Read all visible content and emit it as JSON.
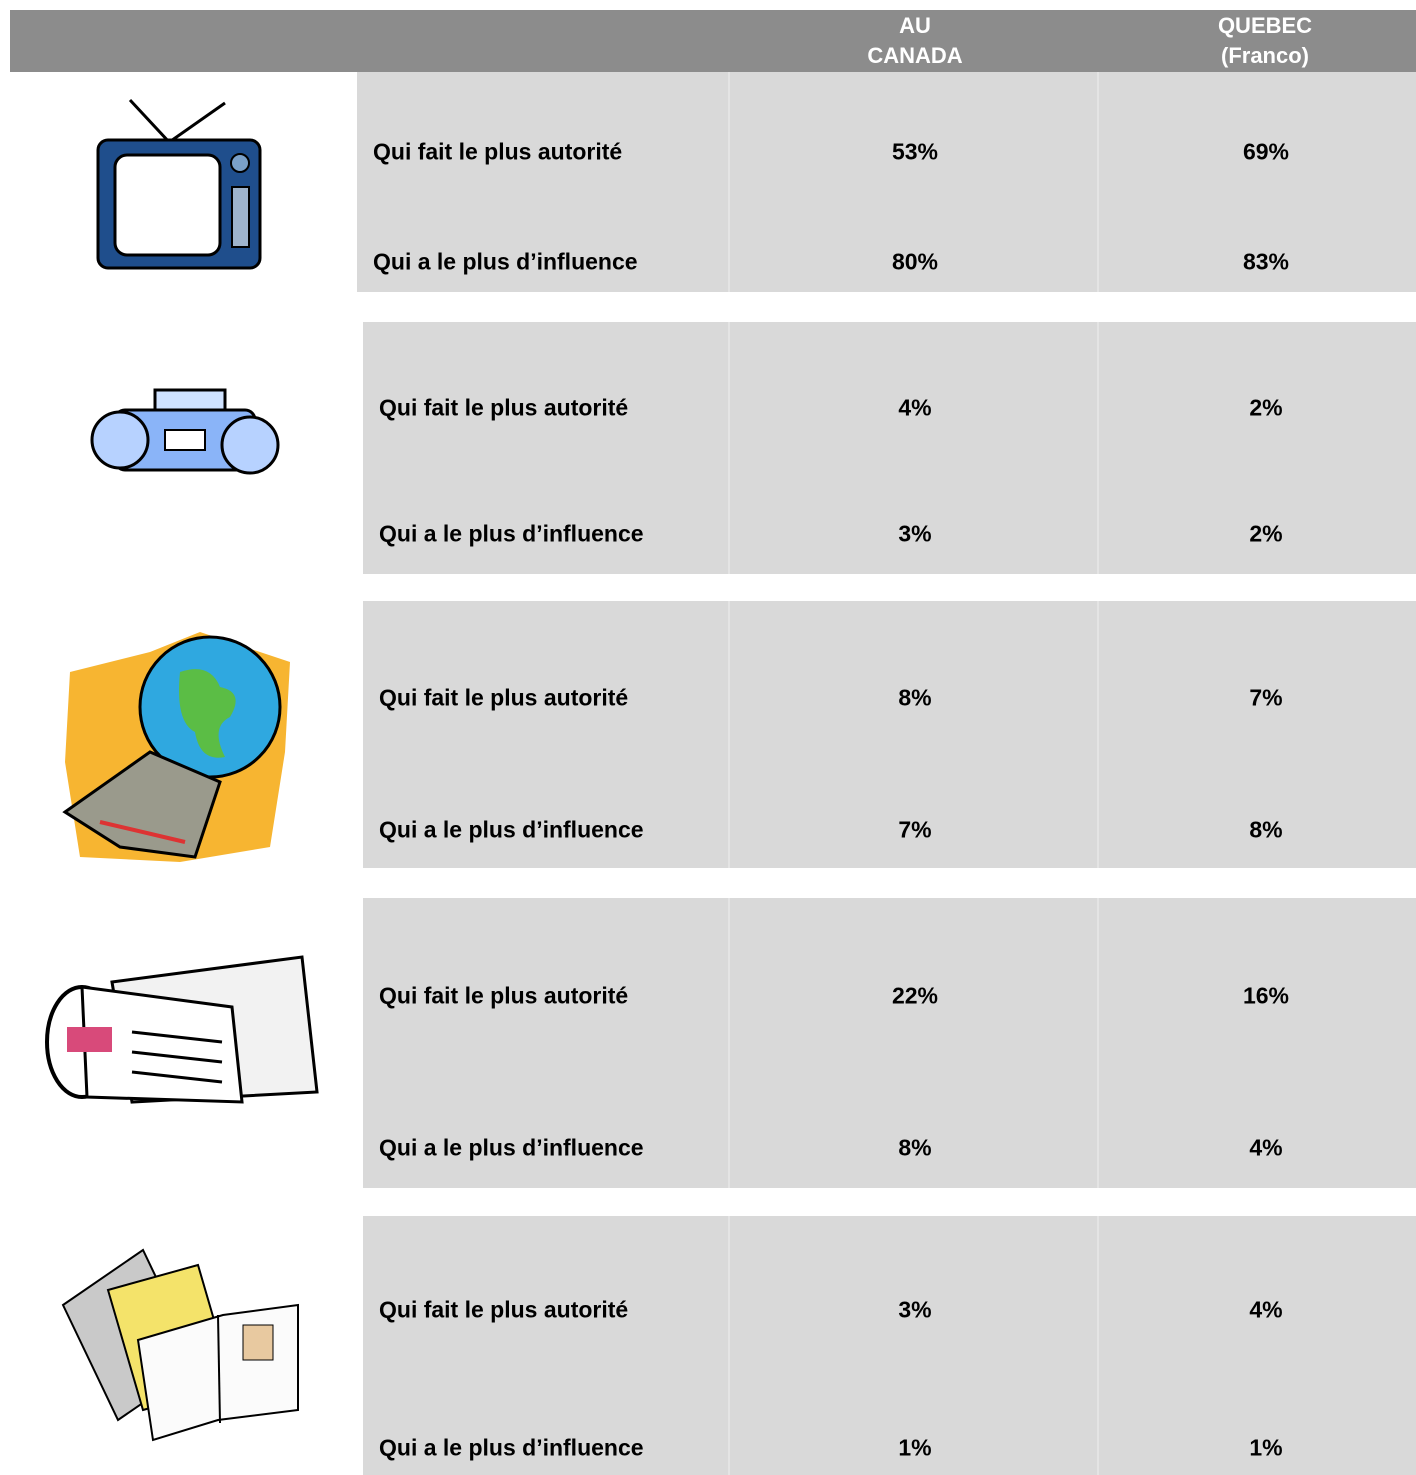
{
  "header": {
    "columns": [
      "AU\nCANADA",
      "QUEBEC\n(Franco)"
    ]
  },
  "groups": [
    {
      "rows": [
        {
          "label": "Qui fait le plus autorité",
          "values": [
            "53%",
            "69%"
          ]
        },
        {
          "label": "Qui a le plus d’influence",
          "values": [
            "80%",
            "83%"
          ]
        }
      ]
    },
    {
      "rows": [
        {
          "label": "Qui fait le plus autorité",
          "values": [
            "4%",
            "2%"
          ]
        },
        {
          "label": "Qui a le plus d’influence",
          "values": [
            "3%",
            "2%"
          ]
        }
      ]
    },
    {
      "rows": [
        {
          "label": "Qui fait le plus autorité",
          "values": [
            "8%",
            "7%"
          ]
        },
        {
          "label": "Qui a le plus d’influence",
          "values": [
            "7%",
            "8%"
          ]
        }
      ]
    },
    {
      "rows": [
        {
          "label": "Qui fait le plus autorité",
          "values": [
            "22%",
            "16%"
          ]
        },
        {
          "label": "Qui a le plus d’influence",
          "values": [
            "8%",
            "4%"
          ]
        }
      ]
    },
    {
      "rows": [
        {
          "label": "Qui fait le plus autorité",
          "values": [
            "3%",
            "4%"
          ]
        },
        {
          "label": "Qui a le plus d’influence",
          "values": [
            "1%",
            "1%"
          ]
        }
      ]
    }
  ]
}
